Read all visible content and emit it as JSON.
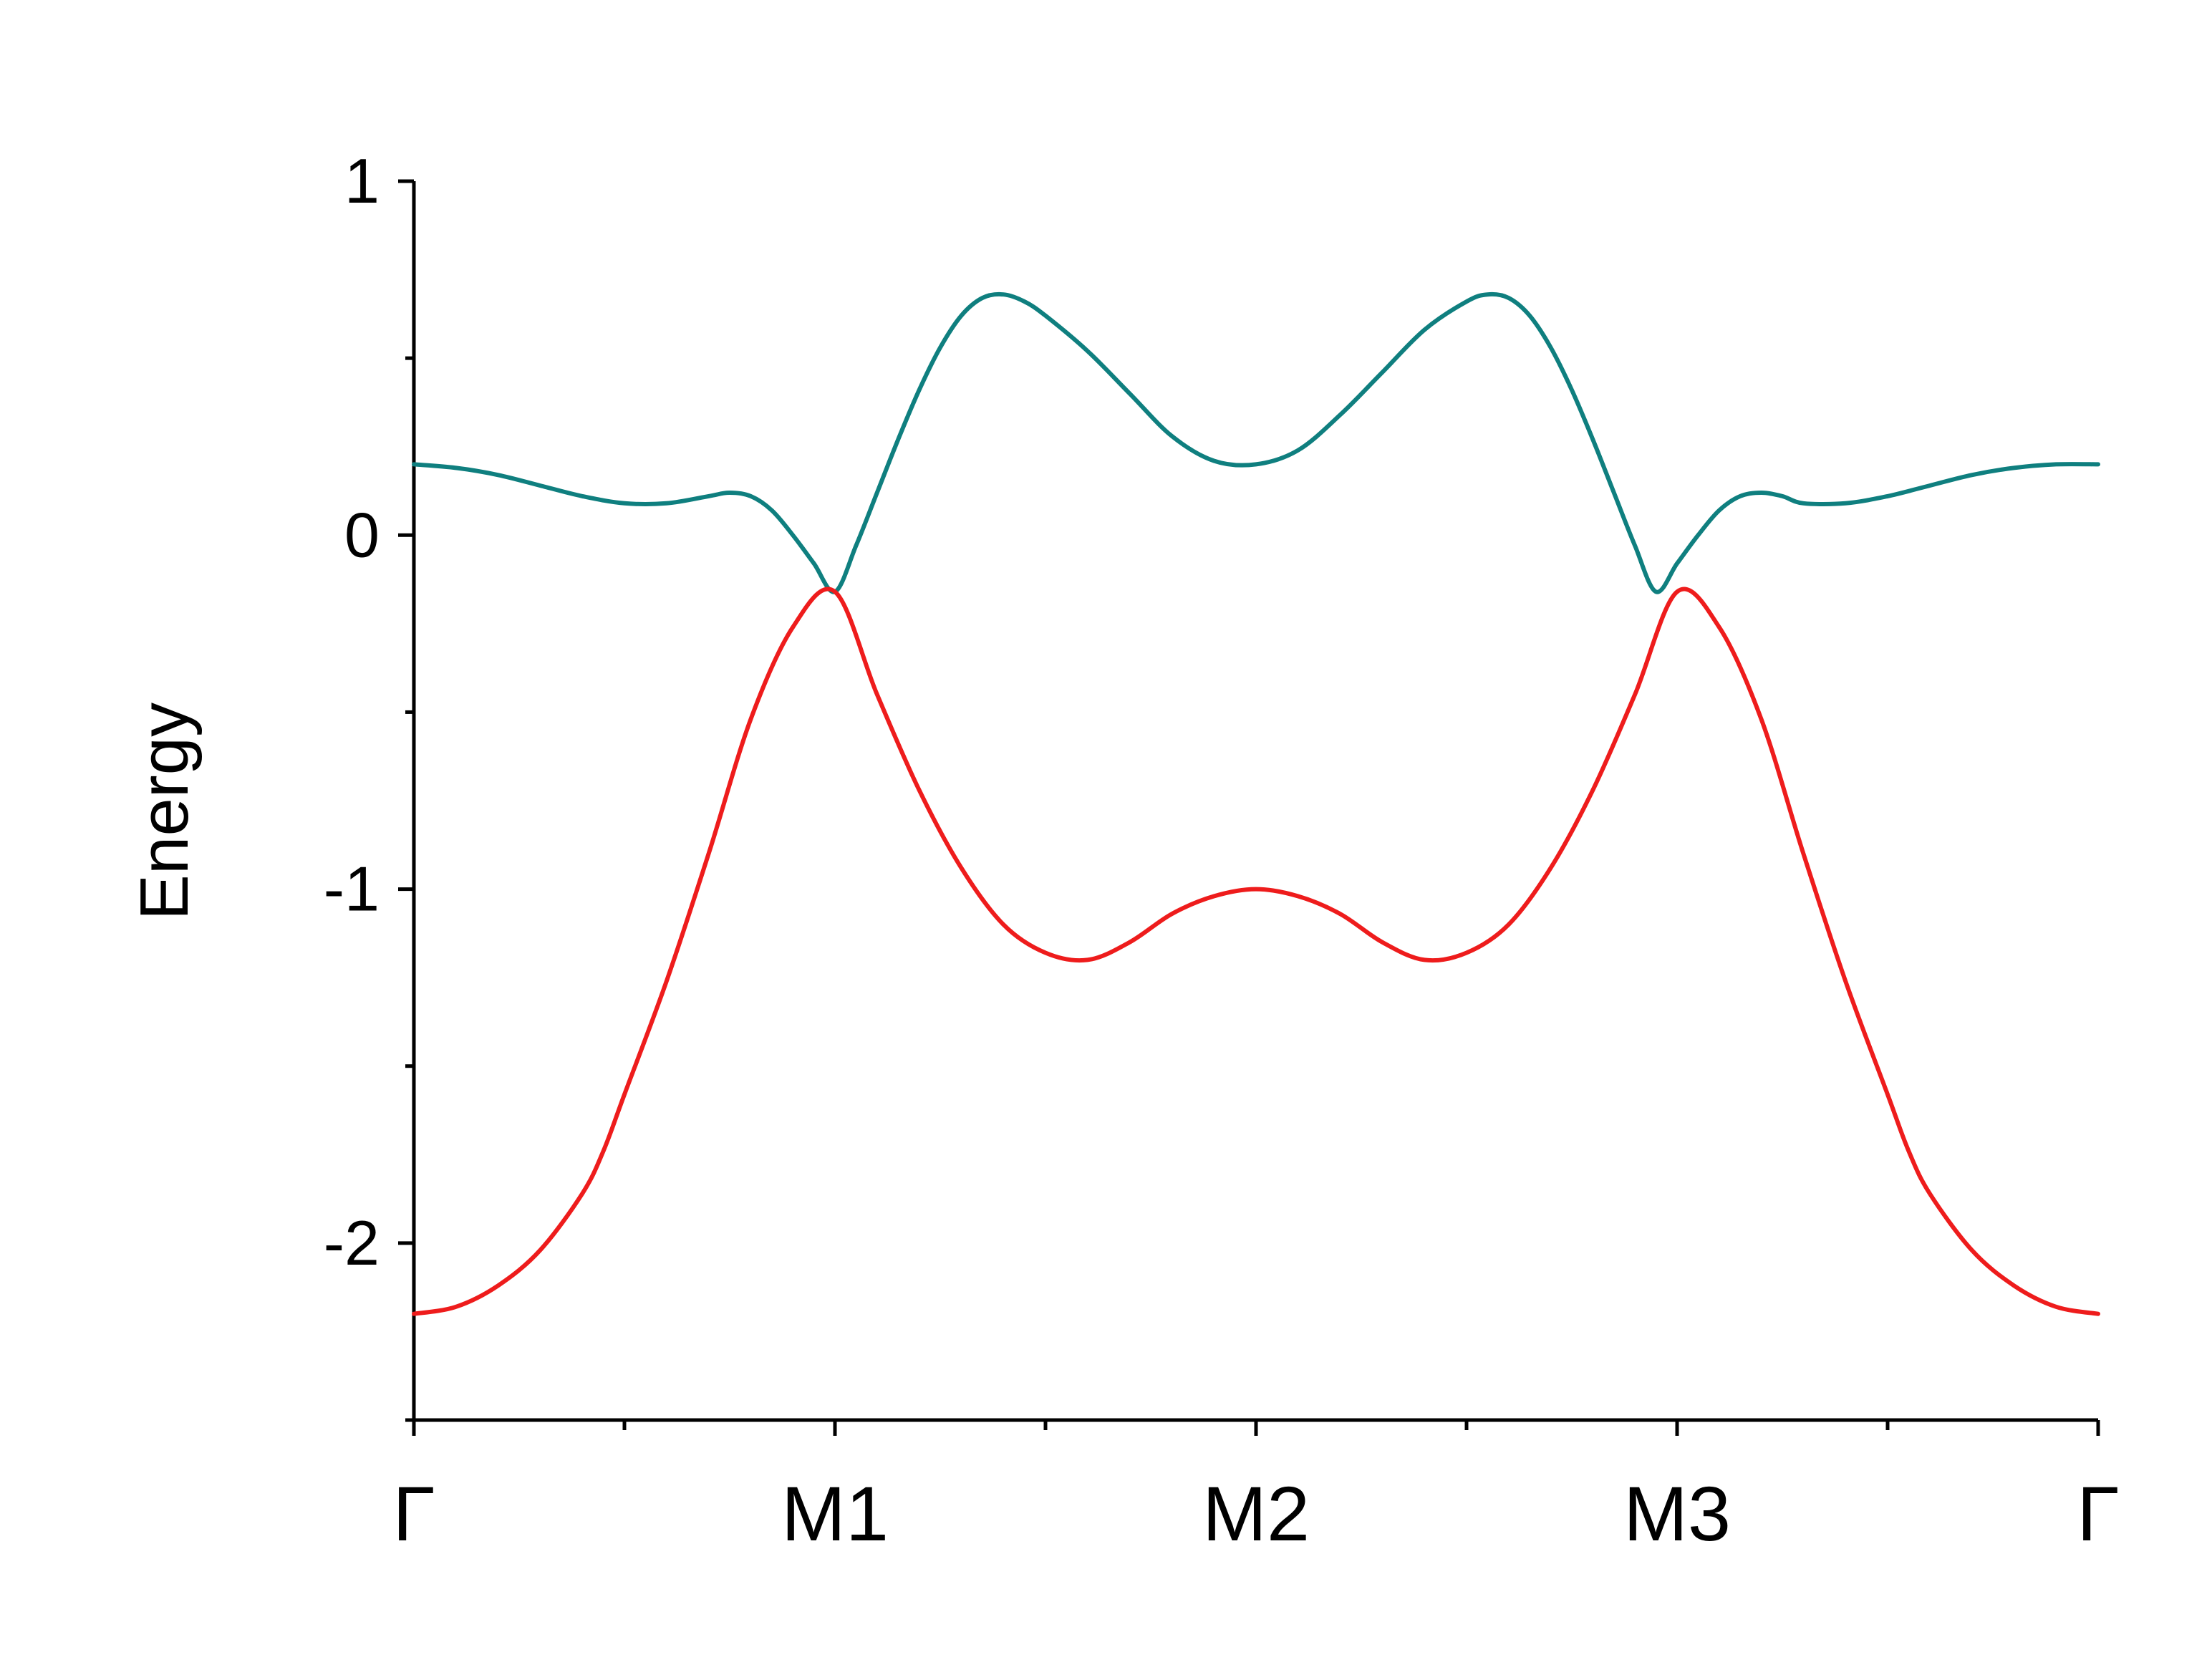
{
  "chart_data": {
    "type": "line",
    "title": "",
    "xlabel": "",
    "ylabel": "Energy",
    "ylim": [
      -2.5,
      1
    ],
    "yticks": [
      {
        "value": 1,
        "label": "1"
      },
      {
        "value": 0,
        "label": "0"
      },
      {
        "value": -1,
        "label": "-1"
      },
      {
        "value": -2,
        "label": "-2"
      }
    ],
    "yminor_ticks": [
      0.5,
      -0.5,
      -1.5,
      -2.5
    ],
    "xlim": [
      0,
      4
    ],
    "xticks": [
      {
        "value": 0,
        "label": "Γ"
      },
      {
        "value": 1,
        "label": "M1"
      },
      {
        "value": 2,
        "label": "M2"
      },
      {
        "value": 3,
        "label": "M3"
      },
      {
        "value": 4,
        "label": "Γ"
      }
    ],
    "xminor_ticks": [
      0.5,
      1.5,
      2.5,
      3.5
    ],
    "grid": false,
    "legend": "none",
    "series": [
      {
        "color": "#0f7f7f",
        "x": [
          0,
          0.1,
          0.2,
          0.3,
          0.4,
          0.5,
          0.6,
          0.7,
          0.75,
          0.8,
          0.85,
          0.9,
          0.95,
          1.0,
          1.05,
          1.1,
          1.15,
          1.2,
          1.25,
          1.3,
          1.35,
          1.4,
          1.45,
          1.5,
          1.6,
          1.7,
          1.8,
          1.9,
          2.0,
          2.1,
          2.2,
          2.3,
          2.4,
          2.5,
          2.55,
          2.6,
          2.65,
          2.7,
          2.75,
          2.8,
          2.85,
          2.9,
          2.95,
          3.0,
          3.05,
          3.1,
          3.15,
          3.2,
          3.25,
          3.3,
          3.4,
          3.5,
          3.6,
          3.7,
          3.8,
          3.9,
          4.0
        ],
        "y": [
          0.2,
          0.19,
          0.17,
          0.14,
          0.11,
          0.09,
          0.09,
          0.11,
          0.12,
          0.11,
          0.07,
          0.0,
          -0.08,
          -0.16,
          -0.03,
          0.12,
          0.27,
          0.41,
          0.53,
          0.62,
          0.67,
          0.68,
          0.66,
          0.62,
          0.52,
          0.4,
          0.28,
          0.21,
          0.2,
          0.24,
          0.34,
          0.46,
          0.58,
          0.66,
          0.68,
          0.67,
          0.62,
          0.53,
          0.41,
          0.27,
          0.12,
          -0.03,
          -0.16,
          -0.08,
          0.0,
          0.07,
          0.11,
          0.12,
          0.11,
          0.09,
          0.09,
          0.11,
          0.14,
          0.17,
          0.19,
          0.2,
          0.2
        ]
      },
      {
        "color": "#ee1c1c",
        "x": [
          0,
          0.1,
          0.2,
          0.3,
          0.4,
          0.45,
          0.5,
          0.6,
          0.7,
          0.8,
          0.9,
          1.0,
          1.1,
          1.2,
          1.3,
          1.4,
          1.5,
          1.6,
          1.7,
          1.8,
          1.9,
          2.0,
          2.1,
          2.2,
          2.3,
          2.4,
          2.5,
          2.6,
          2.7,
          2.8,
          2.9,
          3.0,
          3.1,
          3.2,
          3.3,
          3.4,
          3.5,
          3.55,
          3.6,
          3.7,
          3.8,
          3.9,
          4.0
        ],
        "y": [
          -2.2,
          -2.18,
          -2.12,
          -2.02,
          -1.86,
          -1.74,
          -1.58,
          -1.26,
          -0.9,
          -0.52,
          -0.26,
          -0.16,
          -0.45,
          -0.72,
          -0.94,
          -1.1,
          -1.18,
          -1.2,
          -1.15,
          -1.07,
          -1.02,
          -1.0,
          -1.02,
          -1.07,
          -1.15,
          -1.2,
          -1.18,
          -1.1,
          -0.94,
          -0.72,
          -0.45,
          -0.16,
          -0.26,
          -0.52,
          -0.9,
          -1.26,
          -1.58,
          -1.74,
          -1.86,
          -2.02,
          -2.12,
          -2.18,
          -2.2
        ]
      }
    ]
  }
}
